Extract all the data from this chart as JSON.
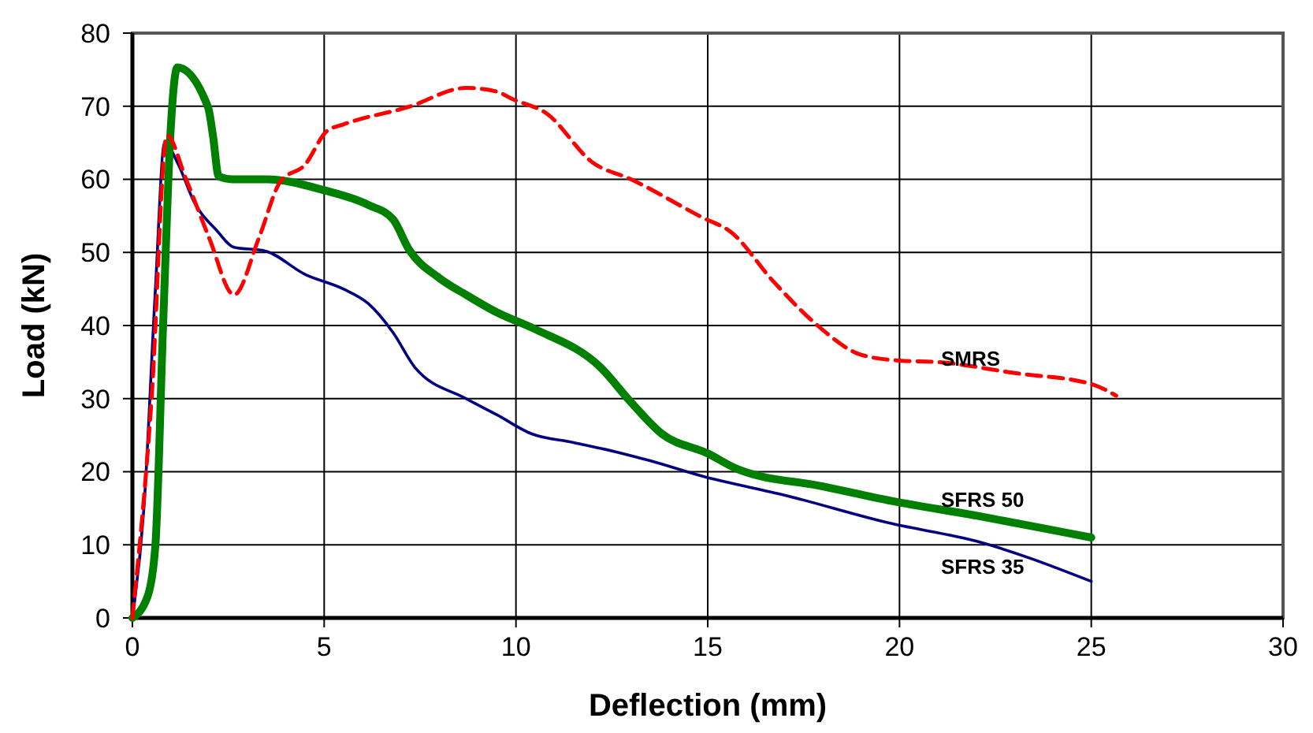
{
  "chart_data": {
    "type": "line",
    "xlabel": "Deflection (mm)",
    "ylabel": "Load (kN)",
    "xlim": [
      0,
      30
    ],
    "ylim": [
      0,
      80
    ],
    "xticks": [
      0,
      5,
      10,
      15,
      20,
      25,
      30
    ],
    "yticks": [
      0,
      10,
      20,
      30,
      40,
      50,
      60,
      70,
      80
    ],
    "grid": true,
    "marker": "none",
    "series": [
      {
        "name": "SFRS 35",
        "color": "#000080",
        "line_style": "solid",
        "x": [
          0,
          0.3,
          0.6,
          0.84,
          1.2,
          1.6,
          2.2,
          2.65,
          3.46,
          4.5,
          5.5,
          6.15,
          6.8,
          7.36,
          8.7,
          9.5,
          10.4,
          11.5,
          12.7,
          13.5,
          14.85,
          17,
          19.8,
          22,
          25
        ],
        "values": [
          0,
          15,
          45,
          65,
          62,
          57,
          53,
          50.7,
          50.2,
          47,
          45,
          43,
          39,
          34.3,
          30,
          27.8,
          25.2,
          24,
          22.6,
          21.5,
          19.4,
          16.8,
          12.9,
          10.5,
          5
        ]
      },
      {
        "name": "SFRS 50",
        "color": "#008000",
        "line_style": "solid",
        "x": [
          0,
          0.4,
          0.6,
          0.8,
          1.0,
          1.17,
          1.97,
          2.1,
          2.25,
          2.6,
          3.5,
          5,
          6.15,
          6.8,
          7.2,
          8,
          8.7,
          9.5,
          10.5,
          12.2,
          13,
          13.8,
          15,
          15.8,
          18,
          19.8,
          22,
          24,
          25
        ],
        "values": [
          0,
          3,
          10,
          40,
          67,
          75.3,
          69.9,
          66,
          60.4,
          60,
          60,
          58.5,
          56.5,
          54.5,
          50.5,
          46.5,
          44.2,
          41.8,
          39.5,
          34.3,
          29.5,
          25.2,
          22.5,
          20.3,
          18,
          16,
          14,
          12,
          11
        ]
      },
      {
        "name": "SMRS",
        "color": "#ff0000",
        "line_style": "dashed",
        "x": [
          0,
          0.5,
          0.9,
          1.4,
          2.0,
          2.65,
          3.3,
          3.86,
          4.5,
          5.07,
          5.5,
          7.2,
          8.7,
          9.5,
          9.9,
          10.8,
          12,
          13,
          14.85,
          15.6,
          16.7,
          17.8,
          19,
          20,
          21,
          23,
          25,
          25.65
        ],
        "values": [
          0,
          30,
          66,
          60,
          52,
          44.2,
          52,
          59.7,
          62,
          66.6,
          67.5,
          69.9,
          72.5,
          72,
          71,
          69,
          62.3,
          60,
          54.8,
          52.8,
          46.1,
          40.3,
          36,
          35.2,
          35,
          33.5,
          32,
          30.4
        ]
      }
    ]
  }
}
